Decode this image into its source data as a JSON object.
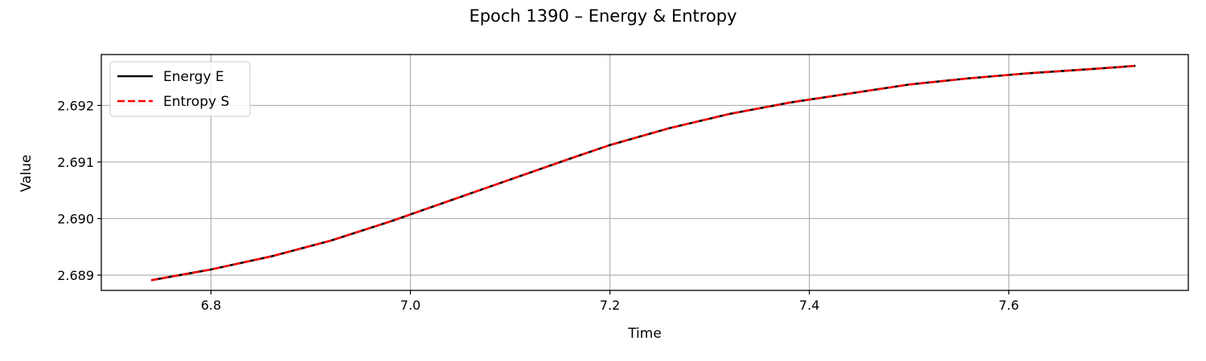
{
  "chart_data": {
    "type": "line",
    "title": "Epoch 1390 – Energy & Entropy",
    "xlabel": "Time",
    "ylabel": "Value",
    "xlim": [
      6.69,
      7.78
    ],
    "ylim": [
      2.68873,
      2.6929
    ],
    "xticks": [
      6.8,
      7.0,
      7.2,
      7.4,
      7.6
    ],
    "xtick_labels": [
      "6.8",
      "7.0",
      "7.2",
      "7.4",
      "7.6"
    ],
    "yticks": [
      2.689,
      2.69,
      2.691,
      2.692
    ],
    "ytick_labels": [
      "2.689",
      "2.690",
      "2.691",
      "2.692"
    ],
    "grid": true,
    "legend_position": "top-left",
    "series": [
      {
        "name": "Energy E",
        "color": "#000000",
        "style": "solid",
        "x": [
          6.74,
          6.8,
          6.86,
          6.92,
          6.98,
          7.04,
          7.1,
          7.16,
          7.2,
          7.26,
          7.32,
          7.38,
          7.44,
          7.5,
          7.56,
          7.62,
          7.68,
          7.727
        ],
        "y": [
          2.68891,
          2.6891,
          2.68933,
          2.68961,
          2.68995,
          2.69032,
          2.69069,
          2.69106,
          2.6913,
          2.6916,
          2.69185,
          2.69205,
          2.69221,
          2.69237,
          2.69248,
          2.69257,
          2.69264,
          2.6927
        ]
      },
      {
        "name": "Entropy S",
        "color": "#ff0000",
        "style": "dashed",
        "x": [
          6.74,
          6.8,
          6.86,
          6.92,
          6.98,
          7.04,
          7.1,
          7.16,
          7.2,
          7.26,
          7.32,
          7.38,
          7.44,
          7.5,
          7.56,
          7.62,
          7.68,
          7.727
        ],
        "y": [
          2.68891,
          2.6891,
          2.68933,
          2.68961,
          2.68995,
          2.69032,
          2.69069,
          2.69106,
          2.6913,
          2.6916,
          2.69185,
          2.69205,
          2.69221,
          2.69237,
          2.69248,
          2.69257,
          2.69264,
          2.6927
        ]
      }
    ]
  }
}
